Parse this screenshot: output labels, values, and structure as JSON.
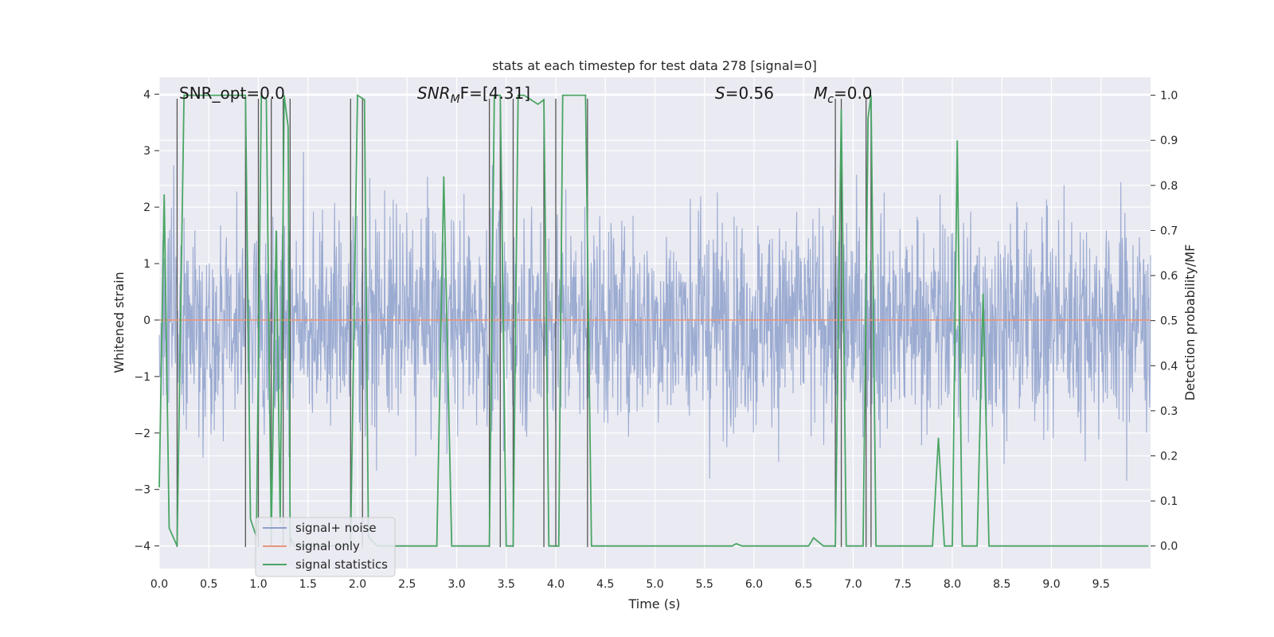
{
  "chart_data": {
    "type": "line",
    "title": "stats at each timestep for test data 278 [signal=0]",
    "xlabel": "Time (s)",
    "ylabel": "Whitened strain",
    "y2label": "Detection probability/MF",
    "xlim": [
      0.0,
      10.0
    ],
    "ylim": [
      -4.4,
      4.3
    ],
    "y2lim": [
      -0.05,
      1.04
    ],
    "xticks": [
      0.0,
      0.5,
      1.0,
      1.5,
      2.0,
      2.5,
      3.0,
      3.5,
      4.0,
      4.5,
      5.0,
      5.5,
      6.0,
      6.5,
      7.0,
      7.5,
      8.0,
      8.5,
      9.0,
      9.5
    ],
    "xtick_labels": [
      "0.0",
      "0.5",
      "1.0",
      "1.5",
      "2.0",
      "2.5",
      "3.0",
      "3.5",
      "4.0",
      "4.5",
      "5.0",
      "5.5",
      "6.0",
      "6.5",
      "7.0",
      "7.5",
      "8.0",
      "8.5",
      "9.0",
      "9.5"
    ],
    "yticks": [
      -4,
      -3,
      -2,
      -1,
      0,
      1,
      2,
      3,
      4
    ],
    "ytick_labels": [
      "−4",
      "−3",
      "−2",
      "−1",
      "0",
      "1",
      "2",
      "3",
      "4"
    ],
    "y2ticks": [
      0.0,
      0.1,
      0.2,
      0.3,
      0.4,
      0.5,
      0.6,
      0.7,
      0.8,
      0.9,
      1.0
    ],
    "y2tick_labels": [
      "0.0",
      "0.1",
      "0.2",
      "0.3",
      "0.4",
      "0.5",
      "0.6",
      "0.7",
      "0.8",
      "0.9",
      "1.0"
    ],
    "grid": true,
    "legend_position": "bottom-left",
    "annotations": {
      "snr_opt": "SNR_opt=0.0",
      "snr_mf_prefix": "SNR",
      "snr_mf_sub": "M",
      "snr_mf_suffix": "F=[4.31]",
      "s_prefix": "S",
      "s_suffix": "=0.56",
      "mc_prefix": "M",
      "mc_sub": "c",
      "mc_suffix": "=0.0"
    },
    "series": [
      {
        "name": "signal+ noise",
        "color": "#8da0cb",
        "axis": "left",
        "style": "dense-noise",
        "x_range": [
          0.0,
          10.0
        ],
        "amplitude_envelope": 4.0
      },
      {
        "name": "signal only",
        "color": "#e8967a",
        "axis": "left",
        "x": [
          0.0,
          10.0
        ],
        "y": [
          0.0,
          0.0
        ]
      },
      {
        "name": "signal statistics",
        "color": "#4aa564",
        "axis": "right",
        "x": [
          0.0,
          0.05,
          0.1,
          0.18,
          0.25,
          0.3,
          0.4,
          0.5,
          0.6,
          0.7,
          0.8,
          0.87,
          0.92,
          0.98,
          1.03,
          1.08,
          1.13,
          1.18,
          1.22,
          1.26,
          1.3,
          1.32,
          1.36,
          1.4,
          1.5,
          1.6,
          1.7,
          1.8,
          1.93,
          2.0,
          2.07,
          2.11,
          2.2,
          2.3,
          2.5,
          2.7,
          2.8,
          2.87,
          2.95,
          3.1,
          3.2,
          3.33,
          3.38,
          3.44,
          3.5,
          3.57,
          3.62,
          3.68,
          3.75,
          3.82,
          3.88,
          3.93,
          3.98,
          4.03,
          4.07,
          4.2,
          4.3,
          4.36,
          4.5,
          5.0,
          5.5,
          5.78,
          5.82,
          5.88,
          6.0,
          6.5,
          6.55,
          6.6,
          6.7,
          6.82,
          6.88,
          6.93,
          7.0,
          7.05,
          7.1,
          7.15,
          7.18,
          7.23,
          7.3,
          7.5,
          7.75,
          7.8,
          7.86,
          7.92,
          8.0,
          8.05,
          8.1,
          8.25,
          8.31,
          8.37,
          8.5,
          9.0,
          9.5,
          9.98
        ],
        "y": [
          0.13,
          0.78,
          0.04,
          0.0,
          1.0,
          1.0,
          1.0,
          1.0,
          1.0,
          1.0,
          1.0,
          1.0,
          0.06,
          0.02,
          1.0,
          0.99,
          0.02,
          0.7,
          0.05,
          1.0,
          0.93,
          0.02,
          0.0,
          0.0,
          0.0,
          0.0,
          0.0,
          0.0,
          0.0,
          1.0,
          0.99,
          0.02,
          0.0,
          0.0,
          0.0,
          0.0,
          0.0,
          0.82,
          0.0,
          0.0,
          0.0,
          0.0,
          1.0,
          1.0,
          0.0,
          0.0,
          1.0,
          1.0,
          0.99,
          0.98,
          0.99,
          0.0,
          0.0,
          0.0,
          1.0,
          1.0,
          1.0,
          0.0,
          0.0,
          0.0,
          0.0,
          0.0,
          0.005,
          0.0,
          0.0,
          0.0,
          0.0,
          0.018,
          0.0,
          0.0,
          0.97,
          0.0,
          0.0,
          0.0,
          0.0,
          0.95,
          1.0,
          0.0,
          0.0,
          0.0,
          0.0,
          0.0,
          0.24,
          0.0,
          0.0,
          0.9,
          0.0,
          0.0,
          0.56,
          0.0,
          0.0,
          0.0,
          0.0,
          0.0
        ]
      }
    ],
    "vertical_markers": [
      0.18,
      0.87,
      1.0,
      1.13,
      1.25,
      1.32,
      1.93,
      2.05,
      3.33,
      3.44,
      3.57,
      3.88,
      4.0,
      4.32,
      6.82,
      6.88,
      7.13,
      7.18
    ]
  }
}
